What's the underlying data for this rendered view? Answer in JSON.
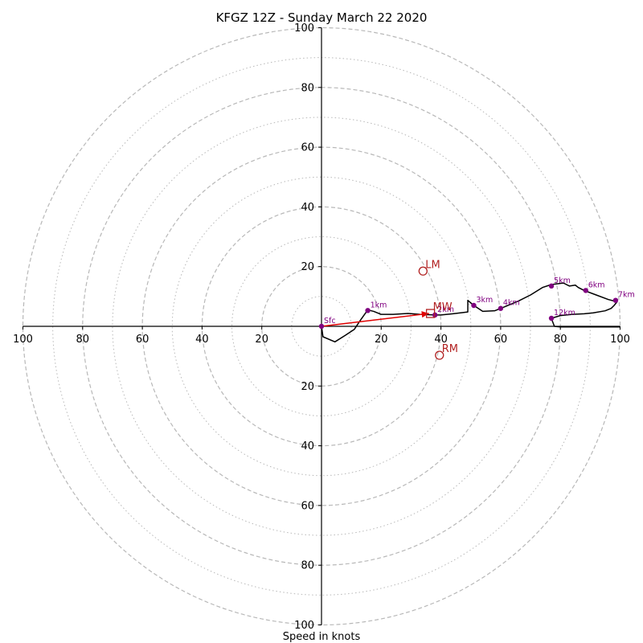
{
  "chart_data": {
    "type": "hodograph",
    "title": "KFGZ 12Z - Sunday March 22 2020",
    "xlabel": "Speed in knots",
    "units": "knots",
    "xlim": [
      -100,
      100
    ],
    "ylim": [
      -100,
      100
    ],
    "rings_major": [
      20,
      40,
      60,
      80,
      100
    ],
    "rings_minor": [
      10,
      30,
      50,
      70,
      90
    ],
    "tick_labels": [
      "100",
      "80",
      "60",
      "40",
      "20",
      "20",
      "40",
      "60",
      "80",
      "100"
    ],
    "tick_values_x": [
      -100,
      -80,
      -60,
      -40,
      -20,
      20,
      40,
      60,
      80,
      100
    ],
    "tick_values_y": [
      100,
      80,
      60,
      40,
      20,
      -20,
      -40,
      -60,
      -80,
      -100
    ],
    "trace": {
      "u": [
        0,
        0.5,
        4.5,
        8,
        11,
        13,
        15.5,
        17.5,
        20,
        24,
        29,
        33,
        38,
        40,
        44,
        49,
        49,
        51,
        54,
        58,
        60,
        62,
        66,
        70,
        74,
        77,
        81,
        83,
        85,
        86,
        88,
        92,
        96,
        99,
        98,
        97,
        95,
        91,
        88,
        84,
        80,
        78,
        77,
        78,
        80,
        85,
        90,
        95,
        100
      ],
      "v": [
        0,
        -3.5,
        -5.2,
        -3,
        -1,
        2,
        5.5,
        5,
        4,
        4,
        4.3,
        4,
        3.8,
        3.8,
        4.2,
        4.8,
        8.7,
        7,
        5,
        5.2,
        6,
        6.8,
        8.5,
        10.5,
        13,
        14,
        14.5,
        13.5,
        13.8,
        13,
        12,
        10.5,
        9,
        8.2,
        7,
        6,
        5.2,
        4.5,
        4.2,
        4,
        3.6,
        3,
        2.6,
        0,
        -0.2,
        -0.2,
        -0.2,
        -0.2,
        -0.2
      ]
    },
    "height_markers": [
      {
        "label": "Sfc",
        "u": 0,
        "v": 0
      },
      {
        "label": "1km",
        "u": 15.5,
        "v": 5.3
      },
      {
        "label": "2km",
        "u": 38,
        "v": 3.8
      },
      {
        "label": "3km",
        "u": 51,
        "v": 7
      },
      {
        "label": "4km",
        "u": 60,
        "v": 6
      },
      {
        "label": "5km",
        "u": 77,
        "v": 13.5
      },
      {
        "label": "6km",
        "u": 88.5,
        "v": 12
      },
      {
        "label": "7km",
        "u": 98.5,
        "v": 8.7
      },
      {
        "label": "12km",
        "u": 77,
        "v": 2.7
      }
    ],
    "storm_motion": [
      {
        "label": "LM",
        "u": 34,
        "v": 18.5,
        "marker": "circle"
      },
      {
        "label": "RM",
        "u": 39.5,
        "v": -9.7,
        "marker": "circle"
      },
      {
        "label": "MW",
        "u": 36.5,
        "v": 4.3,
        "marker": "square"
      }
    ],
    "shear_arrow": {
      "from_u": 0,
      "from_v": 0,
      "to_u": 36,
      "to_v": 4.3
    },
    "colors": {
      "trace": "#000000",
      "height_marker": "#800080",
      "storm_motion": "#b22222",
      "arrow": "#e00000",
      "ring": "#b8b8b8",
      "axis": "#000000"
    }
  }
}
